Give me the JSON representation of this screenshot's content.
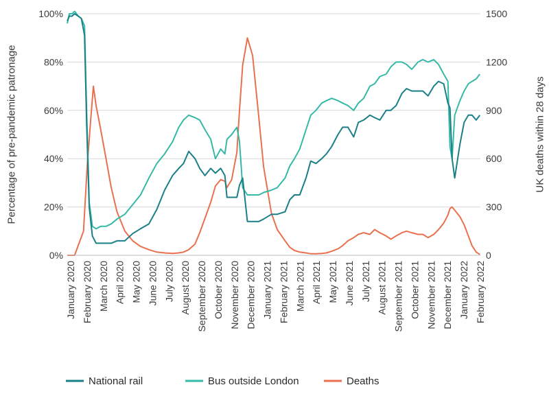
{
  "chart_data": {
    "type": "line",
    "title": "",
    "ylabel_left": "Percentage of pre-pandemic patronage",
    "ylabel_right": "UK deaths within 28 days",
    "xlim": [
      "2020-01-01",
      "2022-02-28"
    ],
    "ylim_left": [
      0,
      100
    ],
    "ylim_right": [
      0,
      1500
    ],
    "yticks_left": [
      "0%",
      "20%",
      "40%",
      "60%",
      "80%",
      "100%"
    ],
    "yticks_right": [
      "0",
      "300",
      "600",
      "900",
      "1200",
      "1500"
    ],
    "xtick_labels": [
      "January 2020",
      "February 2020",
      "March 2020",
      "April 2020",
      "May 2020",
      "June 2020",
      "July 2020",
      "August 2020",
      "September 2020",
      "October 2020",
      "November 2020",
      "December 2020",
      "January 2021",
      "February 2021",
      "March 2021",
      "April 2021",
      "May 2021",
      "June 2021",
      "July 2021",
      "August 2021",
      "September 2021",
      "October 2021",
      "November 2021",
      "December 2021",
      "January 2022",
      "February 2022"
    ],
    "grid": "horizontal",
    "legend_position": "bottom",
    "colors": {
      "rail": "#1a7f86",
      "bus": "#35b9a7",
      "deaths": "#e9704e",
      "grid": "#d9d9d9"
    },
    "series": [
      {
        "name": "National rail",
        "axis": "left",
        "x": [
          "2020-01-01",
          "2020-01-05",
          "2020-01-10",
          "2020-01-15",
          "2020-01-22",
          "2020-01-28",
          "2020-02-03",
          "2020-02-07",
          "2020-02-12",
          "2020-02-18",
          "2020-02-25",
          "2020-03-05",
          "2020-03-15",
          "2020-03-25",
          "2020-04-05",
          "2020-04-20",
          "2020-05-05",
          "2020-05-20",
          "2020-06-05",
          "2020-06-20",
          "2020-07-05",
          "2020-07-20",
          "2020-08-01",
          "2020-08-10",
          "2020-08-20",
          "2020-09-01",
          "2020-09-10",
          "2020-09-20",
          "2020-10-01",
          "2020-10-10",
          "2020-10-20",
          "2020-10-28",
          "2020-11-01",
          "2020-11-10",
          "2020-11-20",
          "2020-11-25",
          "2020-12-01",
          "2020-12-10",
          "2020-12-20",
          "2021-01-01",
          "2021-01-10",
          "2021-01-25",
          "2021-02-05",
          "2021-02-20",
          "2021-03-01",
          "2021-03-10",
          "2021-03-20",
          "2021-04-01",
          "2021-04-10",
          "2021-04-20",
          "2021-05-01",
          "2021-05-10",
          "2021-05-20",
          "2021-06-01",
          "2021-06-10",
          "2021-06-20",
          "2021-07-01",
          "2021-07-10",
          "2021-07-20",
          "2021-08-01",
          "2021-08-10",
          "2021-08-20",
          "2021-09-01",
          "2021-09-10",
          "2021-09-20",
          "2021-10-01",
          "2021-10-10",
          "2021-10-20",
          "2021-11-01",
          "2021-11-10",
          "2021-11-20",
          "2021-12-01",
          "2021-12-10",
          "2021-12-20",
          "2021-12-28",
          "2022-01-01",
          "2022-01-05",
          "2022-01-10",
          "2022-01-20",
          "2022-01-28",
          "2022-02-05",
          "2022-02-12",
          "2022-02-20",
          "2022-02-27"
        ],
        "values": [
          97,
          99,
          99,
          100,
          99,
          98,
          91,
          55,
          20,
          8,
          5,
          5,
          5,
          5,
          6,
          6,
          9,
          11,
          13,
          19,
          27,
          33,
          36,
          38,
          43,
          40,
          36,
          33,
          36,
          34,
          36,
          33,
          24,
          24,
          24,
          29,
          32,
          14,
          14,
          14,
          15,
          17,
          17,
          18,
          23,
          25,
          25,
          32,
          39,
          38,
          40,
          42,
          45,
          50,
          53,
          53,
          49,
          55,
          56,
          58,
          57,
          56,
          60,
          60,
          62,
          67,
          69,
          68,
          68,
          68,
          66,
          70,
          72,
          71,
          63,
          61,
          40,
          32,
          46,
          55,
          58,
          58,
          56,
          58
        ]
      },
      {
        "name": "Bus outside London",
        "axis": "left",
        "x": [
          "2020-01-01",
          "2020-01-05",
          "2020-01-10",
          "2020-01-15",
          "2020-01-22",
          "2020-01-28",
          "2020-02-03",
          "2020-02-07",
          "2020-02-12",
          "2020-02-18",
          "2020-02-25",
          "2020-03-05",
          "2020-03-15",
          "2020-03-25",
          "2020-04-05",
          "2020-04-20",
          "2020-05-05",
          "2020-05-20",
          "2020-06-05",
          "2020-06-20",
          "2020-07-05",
          "2020-07-20",
          "2020-08-01",
          "2020-08-10",
          "2020-08-20",
          "2020-09-01",
          "2020-09-10",
          "2020-09-20",
          "2020-10-01",
          "2020-10-10",
          "2020-10-20",
          "2020-10-28",
          "2020-11-01",
          "2020-11-10",
          "2020-11-20",
          "2020-11-25",
          "2020-12-01",
          "2020-12-10",
          "2020-12-20",
          "2021-01-01",
          "2021-01-10",
          "2021-01-25",
          "2021-02-05",
          "2021-02-20",
          "2021-03-01",
          "2021-03-10",
          "2021-03-20",
          "2021-04-01",
          "2021-04-10",
          "2021-04-20",
          "2021-05-01",
          "2021-05-10",
          "2021-05-20",
          "2021-06-01",
          "2021-06-10",
          "2021-06-20",
          "2021-07-01",
          "2021-07-10",
          "2021-07-20",
          "2021-08-01",
          "2021-08-10",
          "2021-08-20",
          "2021-09-01",
          "2021-09-10",
          "2021-09-20",
          "2021-10-01",
          "2021-10-10",
          "2021-10-20",
          "2021-11-01",
          "2021-11-10",
          "2021-11-20",
          "2021-12-01",
          "2021-12-10",
          "2021-12-20",
          "2021-12-28",
          "2022-01-01",
          "2022-01-05",
          "2022-01-10",
          "2022-01-20",
          "2022-01-28",
          "2022-02-05",
          "2022-02-12",
          "2022-02-20",
          "2022-02-27"
        ],
        "values": [
          96,
          100,
          100,
          101,
          99,
          98,
          95,
          60,
          22,
          12,
          11,
          12,
          12,
          13,
          15,
          17,
          21,
          25,
          32,
          38,
          42,
          47,
          53,
          56,
          58,
          57,
          56,
          52,
          48,
          40,
          44,
          42,
          48,
          50,
          53,
          47,
          28,
          25,
          25,
          25,
          26,
          27,
          28,
          32,
          37,
          40,
          44,
          52,
          58,
          60,
          63,
          64,
          65,
          64,
          63,
          62,
          60,
          63,
          65,
          70,
          71,
          74,
          75,
          78,
          80,
          80,
          79,
          77,
          80,
          81,
          80,
          81,
          79,
          75,
          72,
          45,
          40,
          58,
          64,
          68,
          71,
          72,
          73,
          75
        ]
      },
      {
        "name": "Deaths",
        "axis": "right",
        "x": [
          "2020-01-01",
          "2020-01-15",
          "2020-02-01",
          "2020-02-08",
          "2020-02-15",
          "2020-02-20",
          "2020-02-25",
          "2020-03-05",
          "2020-03-15",
          "2020-03-25",
          "2020-04-05",
          "2020-04-20",
          "2020-05-05",
          "2020-05-20",
          "2020-06-05",
          "2020-06-20",
          "2020-07-05",
          "2020-07-20",
          "2020-08-01",
          "2020-08-10",
          "2020-08-20",
          "2020-09-01",
          "2020-09-10",
          "2020-09-20",
          "2020-10-01",
          "2020-10-10",
          "2020-10-20",
          "2020-10-28",
          "2020-11-01",
          "2020-11-10",
          "2020-11-20",
          "2020-11-25",
          "2020-12-01",
          "2020-12-10",
          "2020-12-20",
          "2021-01-01",
          "2021-01-10",
          "2021-01-25",
          "2021-02-05",
          "2021-02-20",
          "2021-03-01",
          "2021-03-10",
          "2021-03-20",
          "2021-04-01",
          "2021-04-10",
          "2021-04-20",
          "2021-05-01",
          "2021-05-10",
          "2021-05-20",
          "2021-06-01",
          "2021-06-10",
          "2021-06-20",
          "2021-07-01",
          "2021-07-10",
          "2021-07-20",
          "2021-08-01",
          "2021-08-10",
          "2021-08-20",
          "2021-09-01",
          "2021-09-10",
          "2021-09-20",
          "2021-10-01",
          "2021-10-10",
          "2021-10-20",
          "2021-11-01",
          "2021-11-10",
          "2021-11-20",
          "2021-12-01",
          "2021-12-10",
          "2021-12-20",
          "2021-12-28",
          "2022-01-01",
          "2022-01-05",
          "2022-01-10",
          "2022-01-20",
          "2022-01-28",
          "2022-02-05",
          "2022-02-12",
          "2022-02-20",
          "2022-02-27"
        ],
        "values": [
          0,
          0,
          150,
          550,
          850,
          1050,
          930,
          780,
          600,
          420,
          270,
          150,
          90,
          55,
          35,
          20,
          15,
          12,
          15,
          20,
          35,
          70,
          140,
          230,
          330,
          430,
          470,
          460,
          420,
          470,
          640,
          900,
          1180,
          1350,
          1240,
          850,
          550,
          260,
          160,
          90,
          50,
          30,
          20,
          15,
          10,
          10,
          12,
          15,
          25,
          40,
          60,
          90,
          110,
          130,
          140,
          130,
          160,
          140,
          120,
          100,
          120,
          140,
          150,
          140,
          130,
          130,
          110,
          130,
          160,
          200,
          250,
          290,
          300,
          280,
          240,
          190,
          120,
          60,
          20,
          5
        ]
      }
    ]
  }
}
